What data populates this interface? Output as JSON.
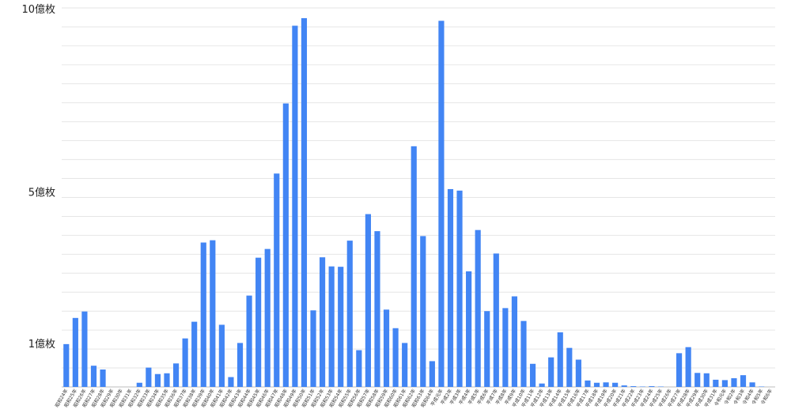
{
  "chart_data": {
    "type": "bar",
    "title": "",
    "xlabel": "",
    "ylabel": "",
    "y_ticks": [
      {
        "value": 10,
        "label": "10億枚"
      },
      {
        "value": 5,
        "label": "5億枚"
      },
      {
        "value": 1,
        "label": "1億枚"
      }
    ],
    "ylim": [
      0,
      10
    ],
    "grid": true,
    "bar_color": "#4285f4",
    "categories": [
      "昭和24年",
      "昭和25年",
      "昭和26年",
      "昭和27年",
      "昭和28年",
      "昭和29年",
      "昭和30年",
      "昭和31年",
      "昭和32年",
      "昭和33年",
      "昭和34年",
      "昭和35年",
      "昭和36年",
      "昭和37年",
      "昭和38年",
      "昭和39年",
      "昭和40年",
      "昭和41年",
      "昭和42年",
      "昭和43年",
      "昭和44年",
      "昭和45年",
      "昭和46年",
      "昭和47年",
      "昭和48年",
      "昭和49年",
      "昭和50年",
      "昭和51年",
      "昭和52年",
      "昭和53年",
      "昭和54年",
      "昭和55年",
      "昭和56年",
      "昭和57年",
      "昭和58年",
      "昭和59年",
      "昭和60年",
      "昭和61年",
      "昭和62年",
      "昭和63年",
      "昭和64年",
      "平成元年",
      "平成2年",
      "平成3年",
      "平成4年",
      "平成5年",
      "平成6年",
      "平成7年",
      "平成8年",
      "平成9年",
      "平成10年",
      "平成11年",
      "平成12年",
      "平成13年",
      "平成14年",
      "平成15年",
      "平成16年",
      "平成17年",
      "平成18年",
      "平成19年",
      "平成20年",
      "平成21年",
      "平成22年",
      "平成23年",
      "平成24年",
      "平成25年",
      "平成26年",
      "平成27年",
      "平成28年",
      "平成29年",
      "平成30年",
      "平成31年",
      "令和元年",
      "令和2年",
      "令和3年",
      "令和4年",
      "令和5年",
      "令和6年"
    ],
    "values": [
      1.13,
      1.82,
      1.99,
      0.56,
      0.46,
      0.0,
      0.0,
      0.0,
      0.11,
      0.51,
      0.34,
      0.36,
      0.62,
      1.28,
      1.72,
      3.81,
      3.87,
      1.64,
      0.26,
      1.16,
      2.41,
      3.41,
      3.64,
      5.63,
      7.48,
      9.53,
      9.73,
      2.02,
      3.42,
      3.18,
      3.17,
      3.86,
      0.97,
      4.56,
      4.11,
      2.04,
      1.55,
      1.16,
      6.35,
      3.98,
      0.68,
      9.66,
      5.22,
      5.18,
      3.05,
      4.14,
      2.0,
      3.52,
      2.08,
      2.39,
      1.74,
      0.61,
      0.09,
      0.78,
      1.44,
      1.03,
      0.72,
      0.17,
      0.11,
      0.12,
      0.11,
      0.04,
      0.02,
      0.01,
      0.02,
      0.01,
      0.0,
      0.89,
      1.05,
      0.37,
      0.36,
      0.19,
      0.18,
      0.23,
      0.31,
      0.12,
      0.01,
      0.0
    ]
  }
}
